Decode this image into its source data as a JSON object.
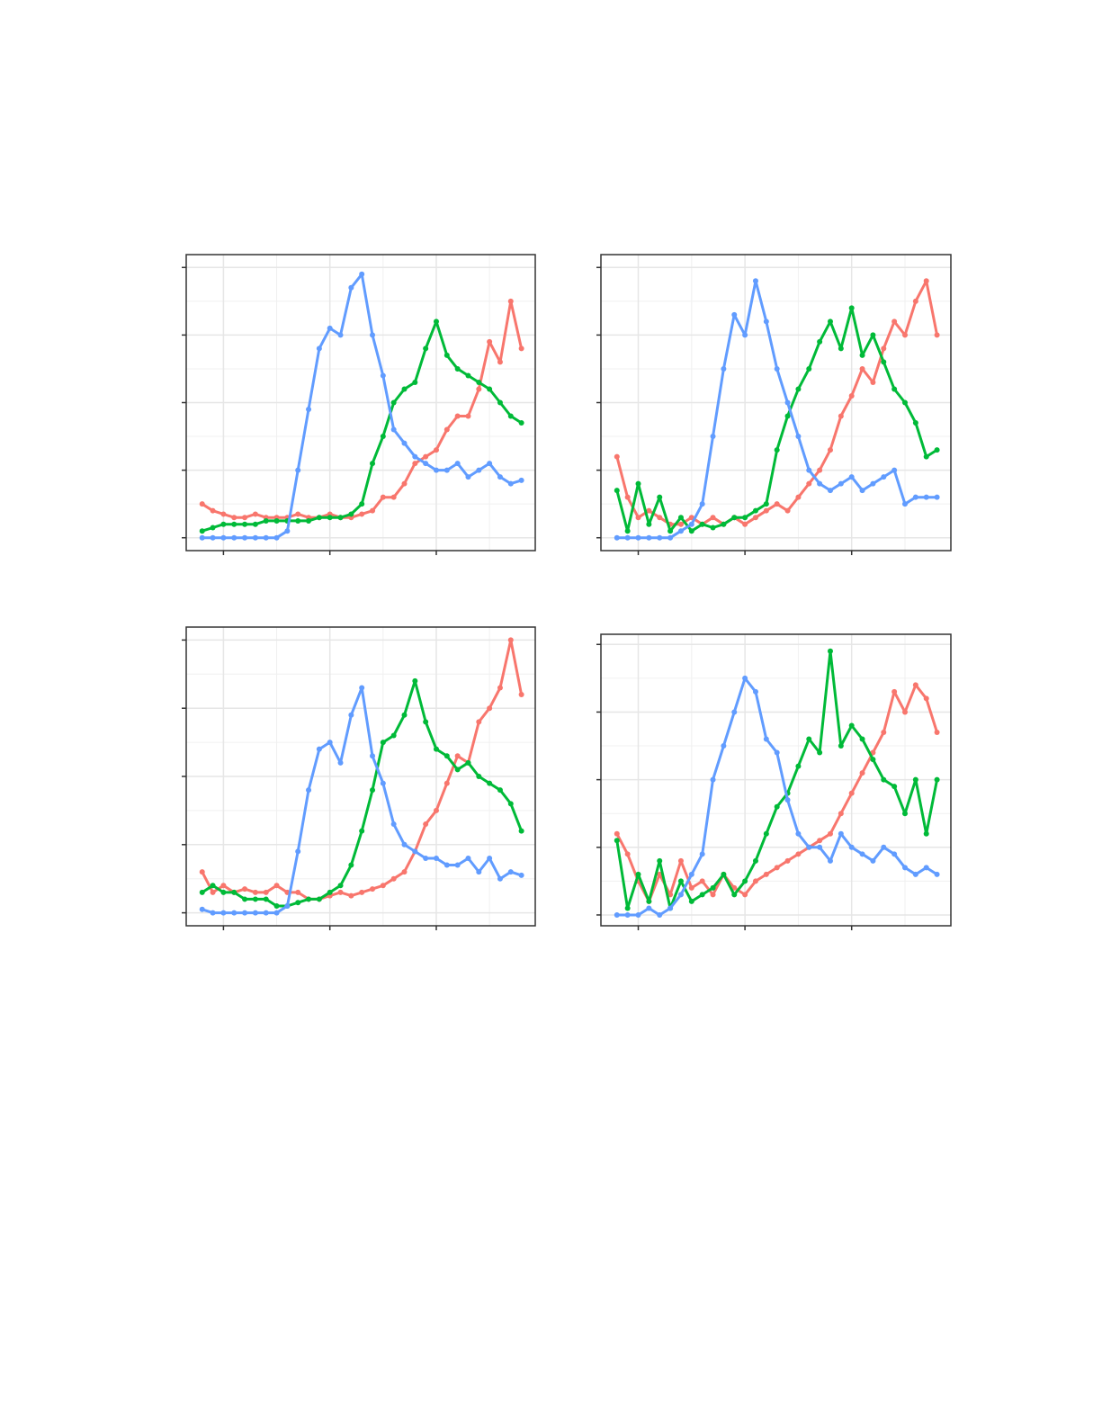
{
  "colors": {
    "red": "#F8766D",
    "green": "#00BA38",
    "blue": "#619CFF"
  },
  "chart_data": [
    {
      "type": "line",
      "title": "",
      "xlabel": "",
      "ylabel": "",
      "xlim": [
        -0.35,
        2.93
      ],
      "ylim": [
        -0.19,
        4.19
      ],
      "x_ticks": [
        0,
        1,
        2
      ],
      "y_ticks": [
        0,
        1,
        2,
        3,
        4
      ],
      "grid": true,
      "legend": "none",
      "x": [
        -0.2,
        -0.1,
        0,
        0.1,
        0.2,
        0.3,
        0.4,
        0.5,
        0.6,
        0.7,
        0.8,
        0.9,
        1.0,
        1.1,
        1.2,
        1.3,
        1.4,
        1.5,
        1.6,
        1.7,
        1.8,
        1.9,
        2.0,
        2.1,
        2.2,
        2.3,
        2.4,
        2.5,
        2.6,
        2.7,
        2.8
      ],
      "series": [
        {
          "color": "#F8766D",
          "values": [
            0.5,
            0.4,
            0.35,
            0.3,
            0.3,
            0.35,
            0.3,
            0.3,
            0.3,
            0.35,
            0.3,
            0.3,
            0.35,
            0.3,
            0.3,
            0.35,
            0.4,
            0.6,
            0.6,
            0.8,
            1.1,
            1.2,
            1.3,
            1.6,
            1.8,
            1.8,
            2.2,
            2.9,
            2.6,
            3.5,
            2.8
          ]
        },
        {
          "color": "#00BA38",
          "values": [
            0.1,
            0.15,
            0.2,
            0.2,
            0.2,
            0.2,
            0.25,
            0.25,
            0.25,
            0.25,
            0.25,
            0.3,
            0.3,
            0.3,
            0.35,
            0.5,
            1.1,
            1.5,
            2.0,
            2.2,
            2.3,
            2.8,
            3.2,
            2.7,
            2.5,
            2.4,
            2.3,
            2.2,
            2.0,
            1.8,
            1.7
          ]
        },
        {
          "color": "#619CFF",
          "values": [
            0,
            0,
            0,
            0,
            0,
            0,
            0,
            0,
            0.1,
            1.0,
            1.9,
            2.8,
            3.1,
            3.0,
            3.7,
            3.9,
            3.0,
            2.4,
            1.6,
            1.4,
            1.2,
            1.1,
            1.0,
            1.0,
            1.1,
            0.9,
            1.0,
            1.1,
            0.9,
            0.8,
            0.85
          ]
        }
      ]
    },
    {
      "type": "line",
      "title": "",
      "xlabel": "",
      "ylabel": "",
      "xlim": [
        -0.35,
        2.93
      ],
      "ylim": [
        -0.19,
        4.19
      ],
      "x_ticks": [
        0,
        1,
        2
      ],
      "y_ticks": [
        0,
        1,
        2,
        3,
        4
      ],
      "grid": true,
      "legend": "none",
      "x": [
        -0.2,
        -0.1,
        0,
        0.1,
        0.2,
        0.3,
        0.4,
        0.5,
        0.6,
        0.7,
        0.8,
        0.9,
        1.0,
        1.1,
        1.2,
        1.3,
        1.4,
        1.5,
        1.6,
        1.7,
        1.8,
        1.9,
        2.0,
        2.1,
        2.2,
        2.3,
        2.4,
        2.5,
        2.6,
        2.7,
        2.8
      ],
      "series": [
        {
          "color": "#F8766D",
          "values": [
            1.2,
            0.6,
            0.3,
            0.4,
            0.3,
            0.2,
            0.2,
            0.3,
            0.2,
            0.3,
            0.2,
            0.3,
            0.2,
            0.3,
            0.4,
            0.5,
            0.4,
            0.6,
            0.8,
            1.0,
            1.3,
            1.8,
            2.1,
            2.5,
            2.3,
            2.8,
            3.2,
            3.0,
            3.5,
            3.8,
            3.0
          ]
        },
        {
          "color": "#00BA38",
          "values": [
            0.7,
            0.1,
            0.8,
            0.2,
            0.6,
            0.1,
            0.3,
            0.1,
            0.2,
            0.15,
            0.2,
            0.3,
            0.3,
            0.4,
            0.5,
            1.3,
            1.8,
            2.2,
            2.5,
            2.9,
            3.2,
            2.8,
            3.4,
            2.7,
            3.0,
            2.6,
            2.2,
            2.0,
            1.7,
            1.2,
            1.3
          ]
        },
        {
          "color": "#619CFF",
          "values": [
            0,
            0,
            0,
            0,
            0,
            0,
            0.1,
            0.2,
            0.5,
            1.5,
            2.5,
            3.3,
            3.0,
            3.8,
            3.2,
            2.5,
            2.0,
            1.5,
            1.0,
            0.8,
            0.7,
            0.8,
            0.9,
            0.7,
            0.8,
            0.9,
            1.0,
            0.5,
            0.6,
            0.6,
            0.6
          ]
        }
      ]
    },
    {
      "type": "line",
      "title": "",
      "xlabel": "",
      "ylabel": "",
      "xlim": [
        -0.35,
        2.93
      ],
      "ylim": [
        -0.19,
        4.19
      ],
      "x_ticks": [
        0,
        1,
        2
      ],
      "y_ticks": [
        0,
        1,
        2,
        3,
        4
      ],
      "grid": true,
      "legend": "none",
      "x": [
        -0.2,
        -0.1,
        0,
        0.1,
        0.2,
        0.3,
        0.4,
        0.5,
        0.6,
        0.7,
        0.8,
        0.9,
        1.0,
        1.1,
        1.2,
        1.3,
        1.4,
        1.5,
        1.6,
        1.7,
        1.8,
        1.9,
        2.0,
        2.1,
        2.2,
        2.3,
        2.4,
        2.5,
        2.6,
        2.7,
        2.8
      ],
      "series": [
        {
          "color": "#F8766D",
          "values": [
            0.6,
            0.3,
            0.4,
            0.3,
            0.35,
            0.3,
            0.3,
            0.4,
            0.3,
            0.3,
            0.2,
            0.2,
            0.25,
            0.3,
            0.25,
            0.3,
            0.35,
            0.4,
            0.5,
            0.6,
            0.9,
            1.3,
            1.5,
            1.9,
            2.3,
            2.2,
            2.8,
            3.0,
            3.3,
            4.0,
            3.2
          ]
        },
        {
          "color": "#00BA38",
          "values": [
            0.3,
            0.4,
            0.3,
            0.3,
            0.2,
            0.2,
            0.2,
            0.1,
            0.1,
            0.15,
            0.2,
            0.2,
            0.3,
            0.4,
            0.7,
            1.2,
            1.8,
            2.5,
            2.6,
            2.9,
            3.4,
            2.8,
            2.4,
            2.3,
            2.1,
            2.2,
            2.0,
            1.9,
            1.8,
            1.6,
            1.2
          ]
        },
        {
          "color": "#619CFF",
          "values": [
            0.05,
            0,
            0,
            0,
            0,
            0,
            0,
            0,
            0.1,
            0.9,
            1.8,
            2.4,
            2.5,
            2.2,
            2.9,
            3.3,
            2.3,
            1.9,
            1.3,
            1.0,
            0.9,
            0.8,
            0.8,
            0.7,
            0.7,
            0.8,
            0.6,
            0.8,
            0.5,
            0.6,
            0.55
          ]
        }
      ]
    },
    {
      "type": "line",
      "title": "",
      "xlabel": "",
      "ylabel": "",
      "xlim": [
        -0.35,
        2.93
      ],
      "ylim": [
        -0.16,
        4.15
      ],
      "x_ticks": [
        0,
        1,
        2
      ],
      "y_ticks": [
        0,
        1,
        2,
        3,
        4
      ],
      "grid": true,
      "legend": "none",
      "x": [
        -0.2,
        -0.1,
        0,
        0.1,
        0.2,
        0.3,
        0.4,
        0.5,
        0.6,
        0.7,
        0.8,
        0.9,
        1.0,
        1.1,
        1.2,
        1.3,
        1.4,
        1.5,
        1.6,
        1.7,
        1.8,
        1.9,
        2.0,
        2.1,
        2.2,
        2.3,
        2.4,
        2.5,
        2.6,
        2.7,
        2.8
      ],
      "series": [
        {
          "color": "#F8766D",
          "values": [
            1.2,
            0.9,
            0.5,
            0.2,
            0.6,
            0.3,
            0.8,
            0.4,
            0.5,
            0.3,
            0.6,
            0.4,
            0.3,
            0.5,
            0.6,
            0.7,
            0.8,
            0.9,
            1.0,
            1.1,
            1.2,
            1.5,
            1.8,
            2.1,
            2.4,
            2.7,
            3.3,
            3.0,
            3.4,
            3.2,
            2.7
          ]
        },
        {
          "color": "#00BA38",
          "values": [
            1.1,
            0.1,
            0.6,
            0.2,
            0.8,
            0.1,
            0.5,
            0.2,
            0.3,
            0.4,
            0.6,
            0.3,
            0.5,
            0.8,
            1.2,
            1.6,
            1.8,
            2.2,
            2.6,
            2.4,
            3.9,
            2.5,
            2.8,
            2.6,
            2.3,
            2.0,
            1.9,
            1.5,
            2.0,
            1.2,
            2.0
          ]
        },
        {
          "color": "#619CFF",
          "values": [
            0,
            0,
            0,
            0.1,
            0,
            0.1,
            0.3,
            0.6,
            0.9,
            2.0,
            2.5,
            3.0,
            3.5,
            3.3,
            2.6,
            2.4,
            1.7,
            1.2,
            1.0,
            1.0,
            0.8,
            1.2,
            1.0,
            0.9,
            0.8,
            1.0,
            0.9,
            0.7,
            0.6,
            0.7,
            0.6
          ]
        }
      ]
    }
  ]
}
